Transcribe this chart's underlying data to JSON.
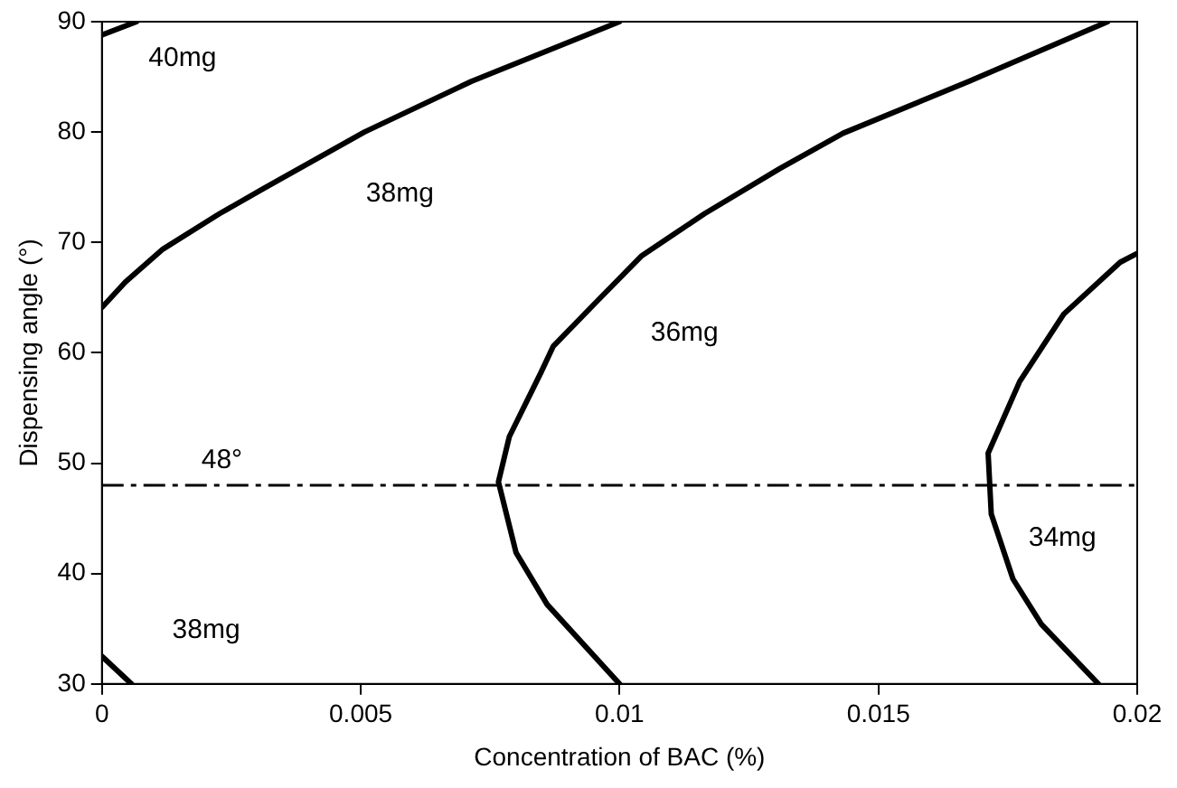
{
  "chart_data": {
    "type": "line",
    "xlabel": "Concentration of BAC (%)",
    "ylabel": "Dispensing angle (°)",
    "xlim": [
      0,
      0.02
    ],
    "xticks": [
      0,
      0.005,
      0.01,
      0.015,
      0.02
    ],
    "ylim": [
      30,
      90
    ],
    "yticks": [
      30,
      40,
      50,
      60,
      70,
      80,
      90
    ],
    "grid": false,
    "legend": false,
    "marker": "none",
    "line_style": "solid",
    "series": [
      {
        "name": "40mg",
        "color": "#000000",
        "x": [
          0,
          0.00067
        ],
        "values": [
          88.8,
          90
        ]
      },
      {
        "name": "38mg",
        "color": "#000000",
        "x": [
          0,
          0.00045,
          0.00118,
          0.00227,
          0.00313,
          0.00507,
          0.00714,
          0.01
        ],
        "values": [
          64.1,
          66.4,
          69.4,
          72.6,
          74.9,
          80,
          84.6,
          90
        ]
      },
      {
        "name": "36mg",
        "color": "#000000",
        "x": [
          0.01943,
          0.01675,
          0.01432,
          0.0131,
          0.01164,
          0.01043,
          0.00957,
          0.00872,
          0.00848,
          0.00787,
          0.00766,
          0.008,
          0.0086,
          0.01
        ],
        "values": [
          90,
          84.6,
          79.9,
          76.7,
          72.6,
          68.8,
          64.7,
          60.6,
          58.2,
          52.4,
          48.3,
          41.9,
          37.2,
          30
        ]
      },
      {
        "name": "34mg",
        "color": "#000000",
        "x": [
          0.02,
          0.01967,
          0.01858,
          0.01773,
          0.01712,
          0.01718,
          0.0176,
          0.01815,
          0.01925
        ],
        "values": [
          69,
          68.2,
          63.5,
          57.4,
          50.9,
          45.4,
          39.5,
          35.4,
          30
        ]
      },
      {
        "name": "38mg",
        "color": "#000000",
        "x": [
          0,
          0.00057
        ],
        "values": [
          32.5,
          30
        ]
      }
    ],
    "ref_lines": [
      {
        "axis": "y",
        "value": 48,
        "label": "48°",
        "color": "#000000",
        "line_style": "dashdot"
      }
    ]
  }
}
